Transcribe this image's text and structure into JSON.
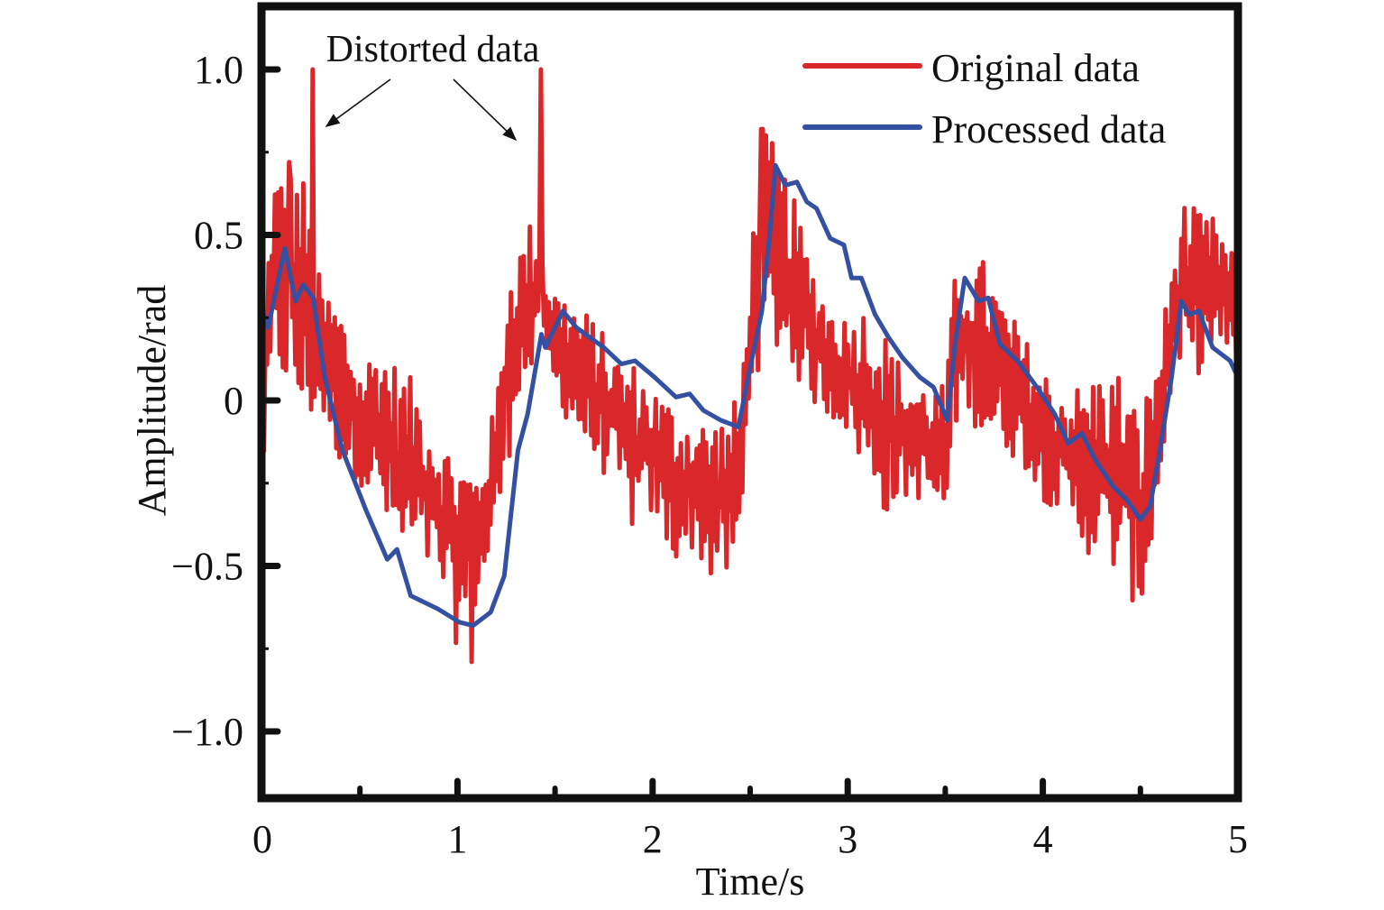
{
  "chart_data": {
    "type": "line",
    "title": "",
    "xlabel": "Time/s",
    "ylabel": "Amplitude/rad",
    "xlim": [
      0,
      5
    ],
    "ylim": [
      -1.2,
      1.2
    ],
    "grid": false,
    "legend_position": "top-right",
    "x_ticks": [
      0,
      1,
      2,
      3,
      4,
      5
    ],
    "x_tick_labels": [
      "0",
      "1",
      "2",
      "3",
      "4",
      "5"
    ],
    "x_minor_ticks": [
      0.5,
      1.5,
      2.5,
      3.5,
      4.5
    ],
    "y_ticks": [
      1.0,
      0.5,
      0,
      -0.5,
      -1.0
    ],
    "y_tick_labels": [
      "1.0",
      "0.5",
      "0",
      "−0.5",
      "−1.0"
    ],
    "y_minor_ticks": [
      0.75,
      0.25,
      -0.25,
      -0.75
    ],
    "annotation": {
      "text": "Distorted data",
      "points_to": [
        [
          0.26,
          1.0
        ],
        [
          1.43,
          1.0
        ]
      ]
    },
    "series": [
      {
        "name": "Original data",
        "color": "#d9272a",
        "style": "noisy",
        "envelope": {
          "t": [
            0.0,
            0.05,
            0.1,
            0.2,
            0.3,
            0.4,
            0.5,
            0.6,
            0.7,
            0.8,
            0.9,
            1.0,
            1.1,
            1.2,
            1.25,
            1.3,
            1.4,
            1.5,
            1.6,
            1.7,
            1.8,
            1.9,
            2.0,
            2.1,
            2.2,
            2.3,
            2.4,
            2.45,
            2.5,
            2.55,
            2.6,
            2.7,
            2.8,
            2.9,
            3.0,
            3.1,
            3.2,
            3.3,
            3.4,
            3.5,
            3.55,
            3.6,
            3.7,
            3.8,
            3.9,
            4.0,
            4.1,
            4.2,
            4.3,
            4.4,
            4.5,
            4.55,
            4.6,
            4.65,
            4.7,
            4.8,
            4.9,
            5.0
          ],
          "upper": [
            0.1,
            0.72,
            0.7,
            0.72,
            0.35,
            0.3,
            0.1,
            0.2,
            0.1,
            0.05,
            -0.1,
            -0.15,
            -0.2,
            0.0,
            0.4,
            0.45,
            0.58,
            0.35,
            0.3,
            0.25,
            0.15,
            0.12,
            0.05,
            0.0,
            -0.05,
            -0.05,
            -0.03,
            0.05,
            0.4,
            0.82,
            0.8,
            0.66,
            0.45,
            0.3,
            0.25,
            0.3,
            0.2,
            0.08,
            0.05,
            0.05,
            0.38,
            0.4,
            0.43,
            0.3,
            0.2,
            0.1,
            0.05,
            0.05,
            0.1,
            0.1,
            -0.05,
            0.08,
            0.2,
            0.35,
            0.62,
            0.57,
            0.55,
            0.42
          ],
          "lower": [
            -0.25,
            0.0,
            0.05,
            -0.1,
            -0.05,
            -0.2,
            -0.25,
            -0.35,
            -0.5,
            -0.5,
            -0.55,
            -0.75,
            -0.65,
            -0.4,
            -0.25,
            0.0,
            0.05,
            0.0,
            -0.1,
            -0.2,
            -0.25,
            -0.4,
            -0.35,
            -0.5,
            -0.45,
            -0.55,
            -0.55,
            -0.5,
            0.05,
            0.1,
            0.15,
            0.1,
            0.0,
            -0.05,
            -0.1,
            -0.25,
            -0.35,
            -0.3,
            -0.3,
            -0.4,
            -0.1,
            0.0,
            -0.15,
            -0.15,
            -0.2,
            -0.3,
            -0.35,
            -0.45,
            -0.5,
            -0.55,
            -0.65,
            -0.5,
            -0.3,
            0.0,
            0.05,
            0.08,
            0.15,
            0.05
          ]
        },
        "spikes": [
          [
            0.26,
            1.0
          ],
          [
            1.43,
            1.0
          ],
          [
            0.14,
            0.72
          ],
          [
            2.56,
            0.82
          ],
          [
            1.07,
            -0.79
          ]
        ]
      },
      {
        "name": "Processed data",
        "color": "#3450a3",
        "style": "smooth",
        "x": [
          0.0,
          0.03,
          0.115,
          0.17,
          0.21,
          0.26,
          0.32,
          0.41,
          0.53,
          0.64,
          0.69,
          0.76,
          0.9,
          1.01,
          1.08,
          1.17,
          1.24,
          1.31,
          1.36,
          1.43,
          1.45,
          1.54,
          1.61,
          1.75,
          1.84,
          1.91,
          2.01,
          2.12,
          2.19,
          2.26,
          2.35,
          2.44,
          2.49,
          2.56,
          2.6,
          2.63,
          2.68,
          2.74,
          2.79,
          2.84,
          2.91,
          2.98,
          3.02,
          3.07,
          3.14,
          3.21,
          3.28,
          3.37,
          3.44,
          3.51,
          3.55,
          3.6,
          3.67,
          3.72,
          3.78,
          3.87,
          3.97,
          4.06,
          4.13,
          4.2,
          4.27,
          4.36,
          4.43,
          4.5,
          4.55,
          4.6,
          4.66,
          4.71,
          4.75,
          4.8,
          4.87,
          4.96,
          5.0
        ],
        "y": [
          0.27,
          0.22,
          0.46,
          0.3,
          0.35,
          0.31,
          0.07,
          -0.15,
          -0.33,
          -0.48,
          -0.45,
          -0.59,
          -0.63,
          -0.67,
          -0.68,
          -0.64,
          -0.53,
          -0.15,
          -0.04,
          0.2,
          0.16,
          0.27,
          0.22,
          0.16,
          0.11,
          0.12,
          0.07,
          0.01,
          0.02,
          -0.03,
          -0.06,
          -0.08,
          0.07,
          0.27,
          0.5,
          0.71,
          0.65,
          0.66,
          0.6,
          0.58,
          0.49,
          0.47,
          0.37,
          0.37,
          0.26,
          0.19,
          0.13,
          0.07,
          0.04,
          -0.06,
          0.17,
          0.37,
          0.3,
          0.31,
          0.17,
          0.12,
          0.04,
          -0.04,
          -0.13,
          -0.1,
          -0.18,
          -0.26,
          -0.3,
          -0.36,
          -0.32,
          -0.15,
          0.07,
          0.3,
          0.26,
          0.27,
          0.16,
          0.12,
          0.07
        ]
      }
    ]
  }
}
